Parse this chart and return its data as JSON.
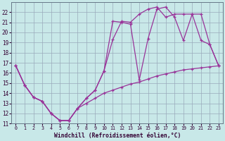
{
  "xlabel": "Windchill (Refroidissement éolien,°C)",
  "line_color": "#993399",
  "bg_color": "#c8e8e8",
  "grid_color": "#99aabb",
  "line1_x": [
    0,
    1,
    2,
    3,
    4,
    5,
    6,
    7,
    8,
    9,
    10,
    11,
    12,
    13,
    14,
    15,
    16,
    17,
    18,
    19,
    20,
    21,
    22,
    23
  ],
  "line1_y": [
    16.7,
    14.8,
    13.6,
    13.2,
    12.0,
    11.3,
    11.3,
    12.5,
    13.0,
    13.5,
    14.0,
    14.3,
    14.6,
    14.9,
    15.1,
    15.4,
    15.7,
    15.9,
    16.1,
    16.3,
    16.4,
    16.5,
    16.6,
    16.7
  ],
  "line2_x": [
    0,
    1,
    2,
    3,
    4,
    5,
    6,
    7,
    8,
    9,
    10,
    11,
    12,
    13,
    14,
    15,
    16,
    17,
    18,
    19,
    20,
    21,
    22,
    23
  ],
  "line2_y": [
    16.7,
    14.8,
    13.6,
    13.2,
    12.0,
    11.3,
    11.3,
    12.5,
    13.5,
    14.3,
    16.2,
    19.3,
    21.1,
    21.0,
    21.8,
    22.3,
    22.5,
    21.5,
    21.8,
    21.8,
    21.8,
    19.2,
    18.8,
    16.7
  ],
  "line3_x": [
    0,
    1,
    2,
    3,
    4,
    5,
    6,
    7,
    8,
    9,
    10,
    11,
    12,
    13,
    14,
    15,
    16,
    17,
    18,
    19,
    20,
    21,
    22,
    23
  ],
  "line3_y": [
    16.7,
    14.8,
    13.6,
    13.2,
    12.0,
    11.3,
    11.3,
    12.5,
    13.5,
    14.3,
    16.2,
    21.1,
    21.0,
    20.8,
    15.3,
    19.4,
    22.3,
    22.5,
    21.5,
    19.2,
    21.8,
    21.8,
    18.8,
    16.7
  ],
  "xlim_min": -0.5,
  "xlim_max": 23.5,
  "ylim_min": 11,
  "ylim_max": 23,
  "xticks": [
    0,
    1,
    2,
    3,
    4,
    5,
    6,
    7,
    8,
    9,
    10,
    11,
    12,
    13,
    14,
    15,
    16,
    17,
    18,
    19,
    20,
    21,
    22,
    23
  ],
  "yticks": [
    11,
    12,
    13,
    14,
    15,
    16,
    17,
    18,
    19,
    20,
    21,
    22
  ]
}
